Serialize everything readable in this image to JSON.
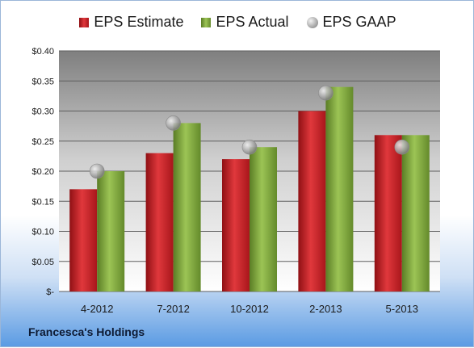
{
  "chart_data": {
    "type": "bar",
    "categories": [
      "4-2012",
      "7-2012",
      "10-2012",
      "2-2013",
      "5-2013"
    ],
    "series": [
      {
        "name": "EPS Estimate",
        "type": "bar",
        "color": "#c9252b",
        "values": [
          0.17,
          0.23,
          0.22,
          0.3,
          0.26
        ]
      },
      {
        "name": "EPS Actual",
        "type": "bar",
        "color": "#7da43a",
        "values": [
          0.2,
          0.28,
          0.24,
          0.34,
          0.26
        ]
      },
      {
        "name": "EPS GAAP",
        "type": "scatter",
        "color": "#a6a6a6",
        "values": [
          0.2,
          0.28,
          0.24,
          0.33,
          0.24
        ]
      }
    ],
    "yticks": [
      "$-",
      "$0.05",
      "$0.10",
      "$0.15",
      "$0.20",
      "$0.25",
      "$0.30",
      "$0.35",
      "$0.40"
    ],
    "ylim": [
      0,
      0.4
    ],
    "legend_position": "top-center",
    "grid": true
  },
  "footer": "Francesca's Holdings"
}
